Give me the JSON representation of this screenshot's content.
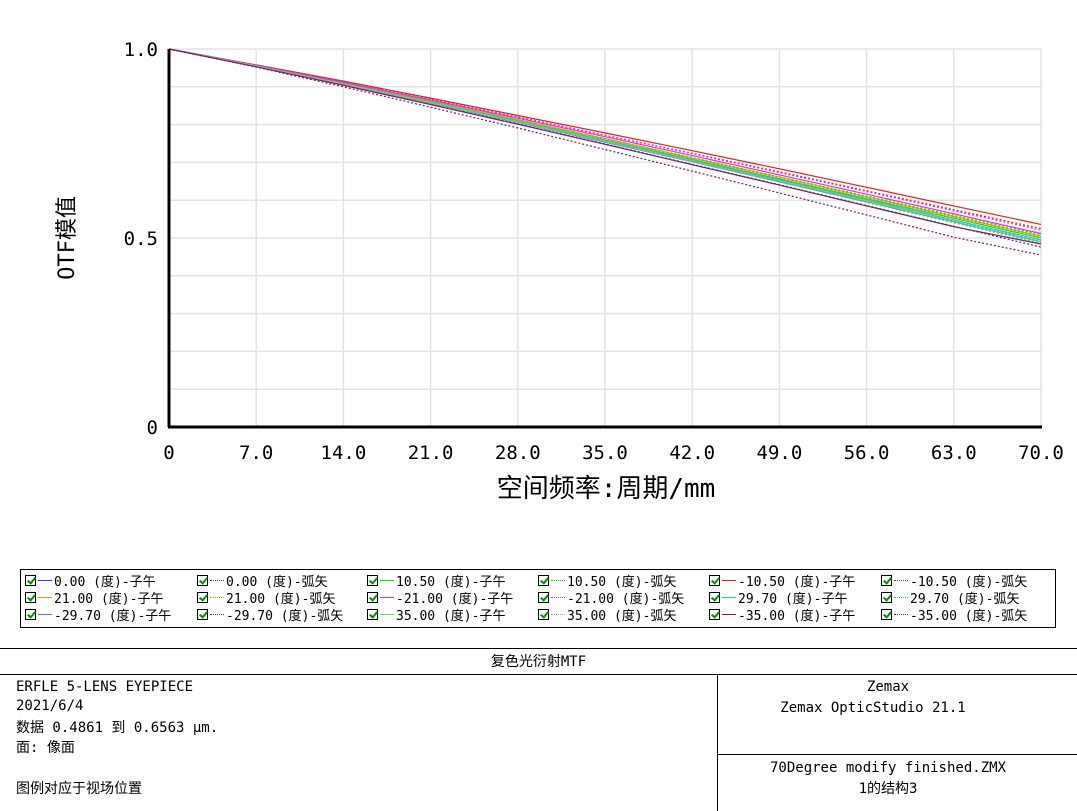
{
  "chart_data": {
    "type": "line",
    "title": "",
    "xlabel": "空间频率:周期/mm",
    "ylabel": "OTF模值",
    "xlim": [
      0,
      70
    ],
    "ylim": [
      0,
      1
    ],
    "x_ticks": [
      "0",
      "7.0",
      "14.0",
      "21.0",
      "28.0",
      "35.0",
      "42.0",
      "49.0",
      "56.0",
      "63.0",
      "70.0"
    ],
    "y_ticks": [
      "0",
      "0.5",
      "1.0"
    ],
    "y_tick_values": [
      0,
      0.5,
      1.0
    ],
    "grid": true,
    "x": [
      0,
      7,
      14,
      21,
      28,
      35,
      42,
      49,
      56,
      63,
      70
    ],
    "series": [
      {
        "name": "0.00 (度)-子午",
        "color": "#3b3bff",
        "dash": "solid",
        "values": [
          1.0,
          0.955,
          0.907,
          0.857,
          0.806,
          0.754,
          0.702,
          0.649,
          0.596,
          0.543,
          0.49
        ]
      },
      {
        "name": "0.00 (度)-弧矢",
        "color": "#3b3bff",
        "dash": "dotted",
        "values": [
          1.0,
          0.955,
          0.907,
          0.857,
          0.806,
          0.754,
          0.702,
          0.649,
          0.596,
          0.543,
          0.49
        ]
      },
      {
        "name": "10.50 (度)-子午",
        "color": "#18d818",
        "dash": "solid",
        "values": [
          1.0,
          0.956,
          0.909,
          0.86,
          0.81,
          0.759,
          0.708,
          0.656,
          0.604,
          0.552,
          0.5
        ]
      },
      {
        "name": "10.50 (度)-弧矢",
        "color": "#18d818",
        "dash": "dotted",
        "values": [
          1.0,
          0.956,
          0.91,
          0.862,
          0.813,
          0.763,
          0.713,
          0.662,
          0.611,
          0.56,
          0.509
        ]
      },
      {
        "name": "-10.50 (度)-子午",
        "color": "#e0201e",
        "dash": "solid",
        "values": [
          1.0,
          0.958,
          0.915,
          0.87,
          0.824,
          0.778,
          0.731,
          0.683,
          0.634,
          0.585,
          0.536
        ]
      },
      {
        "name": "-10.50 (度)-弧矢",
        "color": "#e0201e",
        "dash": "dotted",
        "values": [
          1.0,
          0.957,
          0.913,
          0.867,
          0.82,
          0.772,
          0.724,
          0.675,
          0.625,
          0.575,
          0.525
        ]
      },
      {
        "name": "21.00 (度)-子午",
        "color": "#b0b000",
        "dash": "solid",
        "values": [
          1.0,
          0.956,
          0.91,
          0.862,
          0.813,
          0.763,
          0.712,
          0.661,
          0.609,
          0.557,
          0.505
        ]
      },
      {
        "name": "21.00 (度)-弧矢",
        "color": "#b0b000",
        "dash": "dotted",
        "values": [
          1.0,
          0.956,
          0.91,
          0.861,
          0.811,
          0.761,
          0.71,
          0.658,
          0.606,
          0.554,
          0.502
        ]
      },
      {
        "name": "-21.00 (度)-子午",
        "color": "#e030e0",
        "dash": "solid",
        "values": [
          1.0,
          0.957,
          0.912,
          0.865,
          0.817,
          0.768,
          0.718,
          0.667,
          0.616,
          0.564,
          0.512
        ]
      },
      {
        "name": "-21.00 (度)-弧矢",
        "color": "#e030e0",
        "dash": "dotted",
        "values": [
          1.0,
          0.957,
          0.913,
          0.867,
          0.82,
          0.772,
          0.723,
          0.673,
          0.623,
          0.572,
          0.521
        ]
      },
      {
        "name": "29.70 (度)-子午",
        "color": "#20c8d8",
        "dash": "solid",
        "values": [
          1.0,
          0.955,
          0.908,
          0.859,
          0.809,
          0.758,
          0.706,
          0.654,
          0.601,
          0.548,
          0.495
        ]
      },
      {
        "name": "29.70 (度)-弧矢",
        "color": "#20c8d8",
        "dash": "dotted",
        "values": [
          1.0,
          0.955,
          0.907,
          0.858,
          0.807,
          0.756,
          0.704,
          0.651,
          0.598,
          0.545,
          0.492
        ]
      },
      {
        "name": "-29.70 (度)-子午",
        "color": "#6a6af0",
        "dash": "solid",
        "values": [
          1.0,
          0.955,
          0.907,
          0.857,
          0.806,
          0.754,
          0.702,
          0.649,
          0.596,
          0.543,
          0.49
        ]
      },
      {
        "name": "-29.70 (度)-弧矢",
        "color": "#3a3a9a",
        "dash": "dotted",
        "values": [
          1.0,
          0.954,
          0.905,
          0.854,
          0.802,
          0.749,
          0.695,
          0.641,
          0.586,
          0.531,
          0.476
        ]
      },
      {
        "name": "35.00 (度)-子午",
        "color": "#70d070",
        "dash": "solid",
        "values": [
          1.0,
          0.955,
          0.908,
          0.858,
          0.807,
          0.756,
          0.704,
          0.651,
          0.598,
          0.544,
          0.49
        ]
      },
      {
        "name": "35.00 (度)-弧矢",
        "color": "#70d070",
        "dash": "dotted",
        "values": [
          1.0,
          0.955,
          0.907,
          0.857,
          0.806,
          0.754,
          0.701,
          0.648,
          0.594,
          0.54,
          0.486
        ]
      },
      {
        "name": "-35.00 (度)-子午",
        "color": "#7a1a6a",
        "dash": "solid",
        "values": [
          1.0,
          0.953,
          0.904,
          0.853,
          0.801,
          0.748,
          0.694,
          0.64,
          0.585,
          0.53,
          0.484
        ]
      },
      {
        "name": "-35.00 (度)-弧矢",
        "color": "#7a1a6a",
        "dash": "dotted",
        "values": [
          1.0,
          0.952,
          0.9,
          0.846,
          0.791,
          0.734,
          0.677,
          0.619,
          0.561,
          0.502,
          0.455
        ]
      }
    ]
  },
  "footer": {
    "title": "复色光衍射MTF",
    "lens_name": "ERFLE 5-LENS EYEPIECE",
    "date": "2021/6/4",
    "data_range": "数据 0.4861 到 0.6563 μm.",
    "surface": "面: 像面",
    "legend_note": "图例对应于视场位置",
    "company": "Zemax",
    "software": "Zemax OpticStudio 21.1",
    "file": "70Degree modify finished.ZMX",
    "config": "1的结构3"
  }
}
